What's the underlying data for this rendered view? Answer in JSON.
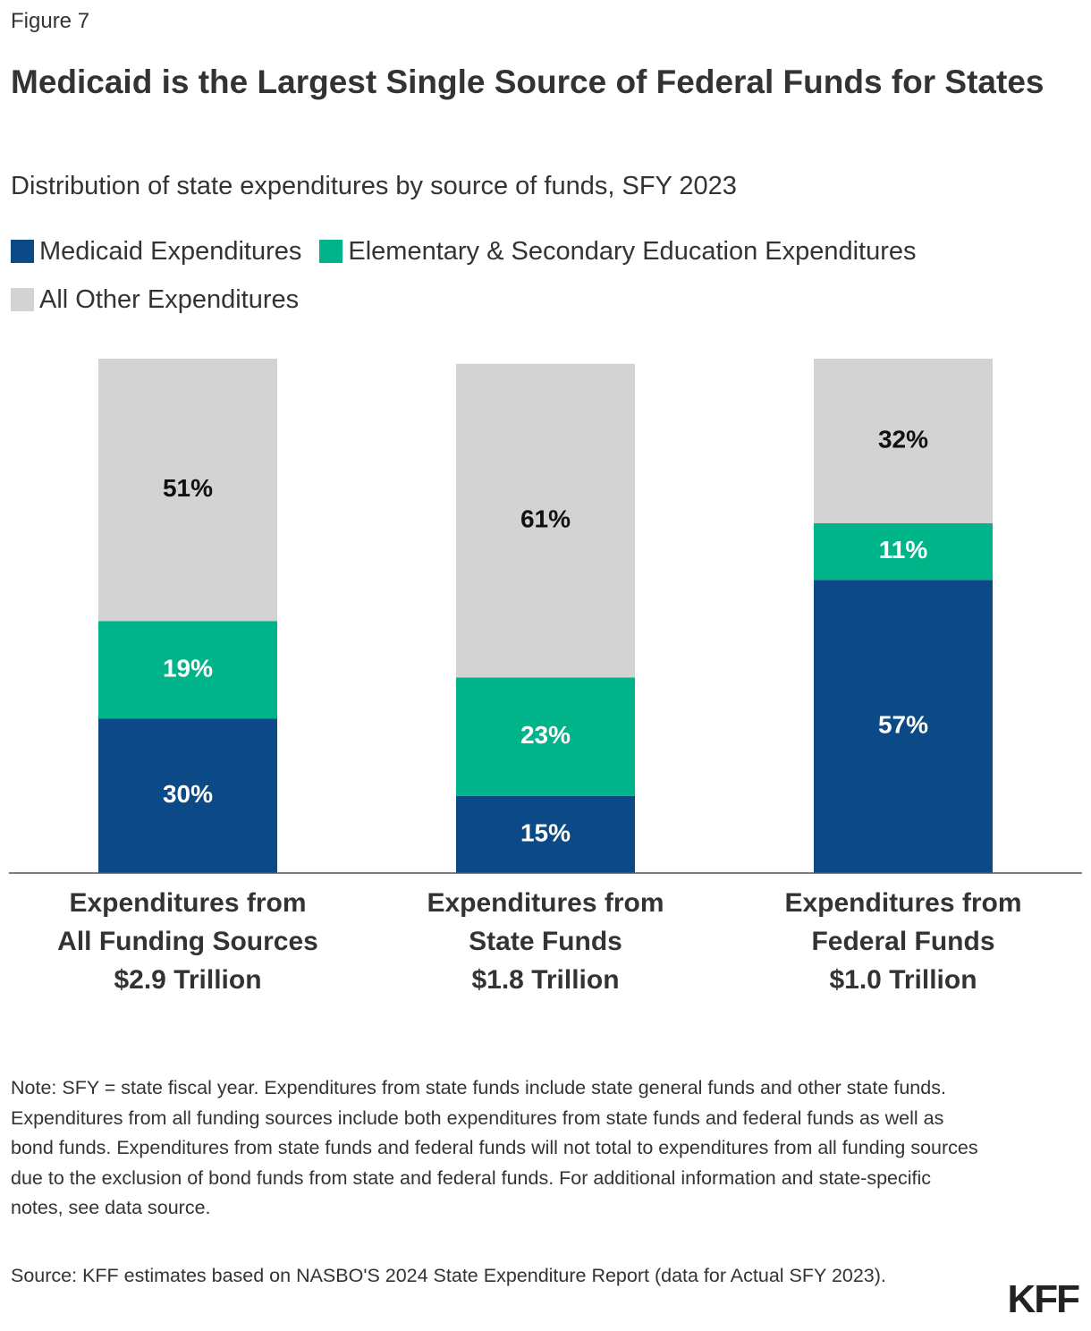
{
  "chart_data": {
    "type": "stacked-bar",
    "figure_label": "Figure 7",
    "title": "Medicaid is the Largest Single Source of Federal Funds for States",
    "subtitle": "Distribution of state expenditures by source of funds, SFY 2023",
    "categories": [
      [
        "Expenditures from",
        "All Funding Sources",
        "$2.9 Trillion"
      ],
      [
        "Expenditures from",
        "State Funds",
        "$1.8 Trillion"
      ],
      [
        "Expenditures from",
        "Federal Funds",
        "$1.0 Trillion"
      ]
    ],
    "series": [
      {
        "name": "Medicaid Expenditures",
        "color": "#0b4a87",
        "values": [
          30,
          15,
          57
        ],
        "value_labels": [
          "30%",
          "15%",
          "57%"
        ],
        "label_color": "#ffffff"
      },
      {
        "name": "Elementary & Secondary Education Expenditures",
        "color": "#00b48a",
        "values": [
          19,
          23,
          11
        ],
        "value_labels": [
          "19%",
          "23%",
          "11%"
        ],
        "label_color": "#ffffff"
      },
      {
        "name": "All Other Expenditures",
        "color": "#d3d3d3",
        "values": [
          51,
          61,
          32
        ],
        "value_labels": [
          "51%",
          "61%",
          "32%"
        ],
        "label_color": "#111111"
      }
    ],
    "ylim": [
      0,
      100
    ],
    "note": "Note: SFY = state fiscal year. Expenditures from state funds include state general funds and other state funds. Expenditures from all funding sources include both expenditures from state funds and federal funds as well as bond funds. Expenditures from state funds and federal funds will not total to expenditures from all funding sources due to the exclusion of bond funds from state and federal funds. For additional information and state-specific notes, see data source.",
    "source": "Source: KFF estimates based on NASBO'S 2024 State Expenditure Report (data for Actual SFY 2023).",
    "logo": "KFF"
  }
}
